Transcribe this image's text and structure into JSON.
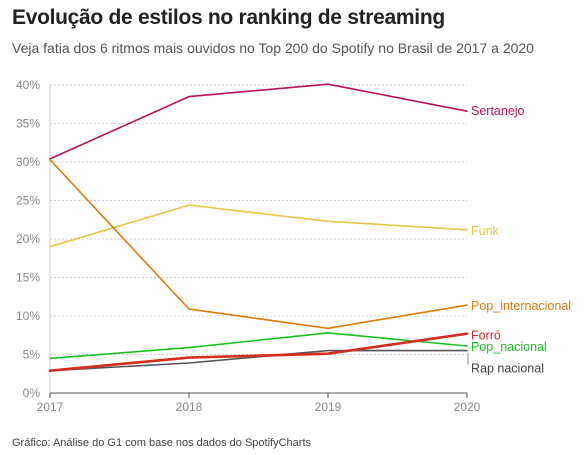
{
  "header": {
    "title": "Evolução de estilos no ranking de streaming",
    "subtitle": "Veja fatia dos 6 ritmos mais ouvidos no Top 200 do Spotify no Brasil de 2017 a 2020"
  },
  "footer": {
    "source": "Gráfico: Análise do G1 com base nos dados do SpotifyCharts"
  },
  "chart_data": {
    "type": "line",
    "x": [
      "2017",
      "2018",
      "2019",
      "2020"
    ],
    "ylim": [
      0,
      40
    ],
    "yticks": [
      0,
      5,
      10,
      15,
      20,
      25,
      30,
      35,
      40
    ],
    "ytick_labels": [
      "0%",
      "5%",
      "10%",
      "15%",
      "20%",
      "25%",
      "30%",
      "35%",
      "40%"
    ],
    "xlabel": "",
    "ylabel": "",
    "grid": "horizontal dashed",
    "series": [
      {
        "name": "Sertanejo",
        "color": "#b5135a",
        "values": [
          30.4,
          38.5,
          40.1,
          36.6
        ]
      },
      {
        "name": "Funk",
        "color": "#e8c64a",
        "values": [
          19.0,
          24.4,
          22.3,
          21.2
        ]
      },
      {
        "name": "Pop_internacional",
        "color": "#e07b0a",
        "values": [
          30.3,
          10.9,
          8.4,
          11.4
        ]
      },
      {
        "name": "Forró",
        "color": "#d42d1f",
        "values": [
          2.9,
          4.6,
          5.1,
          7.7
        ]
      },
      {
        "name": "Pop_nacional",
        "color": "#1fbf1f",
        "values": [
          4.5,
          5.9,
          7.8,
          6.1
        ]
      },
      {
        "name": "Rap nacional",
        "color": "#555555",
        "values": [
          2.9,
          3.9,
          5.5,
          5.5
        ]
      }
    ]
  }
}
